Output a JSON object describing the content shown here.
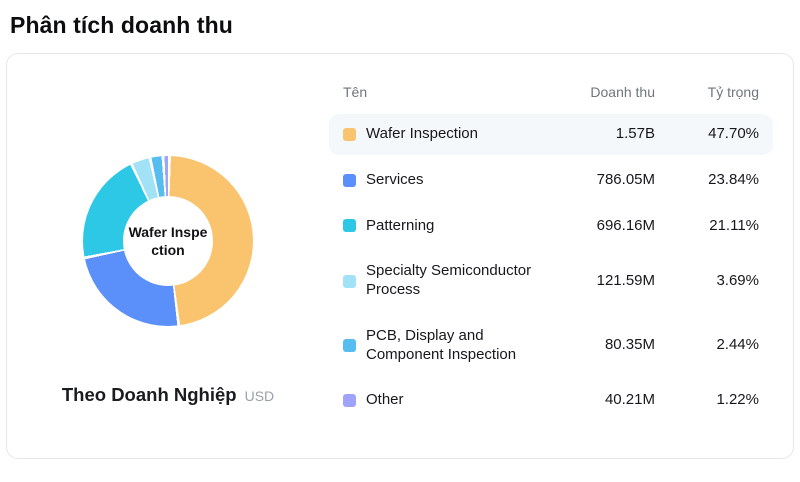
{
  "header": {
    "title": "Phân tích doanh thu"
  },
  "chart_data": {
    "type": "pie",
    "subtype": "donut",
    "title": "Theo Doanh Nghiệp",
    "unit": "USD",
    "center_label": "Wafer Inspection",
    "categories": [
      "Wafer Inspection",
      "Services",
      "Patterning",
      "Specialty Semiconductor Process",
      "PCB, Display and Component Inspection",
      "Other"
    ],
    "values": [
      47.7,
      23.84,
      21.11,
      3.69,
      2.44,
      1.22
    ],
    "revenues": [
      "1.57B",
      "786.05M",
      "696.16M",
      "121.59M",
      "80.35M",
      "40.21M"
    ],
    "colors": [
      "#FAC46E",
      "#5B8FF9",
      "#2CC8E6",
      "#A2E2F6",
      "#55BDF0",
      "#9FA4FA"
    ],
    "donut_hole_ratio": 0.53,
    "start_angle_deg": 0,
    "legend_position": "table-right"
  },
  "table": {
    "headers": [
      "Tên",
      "Doanh thu",
      "Tỷ trọng"
    ],
    "rows": [
      {
        "name": "Wafer Inspection",
        "revenue": "1.57B",
        "share": "47.70%"
      },
      {
        "name": "Services",
        "revenue": "786.05M",
        "share": "23.84%"
      },
      {
        "name": "Patterning",
        "revenue": "696.16M",
        "share": "21.11%"
      },
      {
        "name": "Specialty Semiconductor Process",
        "revenue": "121.59M",
        "share": "3.69%"
      },
      {
        "name": "PCB, Display and Component Inspection",
        "revenue": "80.35M",
        "share": "2.44%"
      },
      {
        "name": "Other",
        "revenue": "40.21M",
        "share": "1.22%"
      }
    ]
  }
}
